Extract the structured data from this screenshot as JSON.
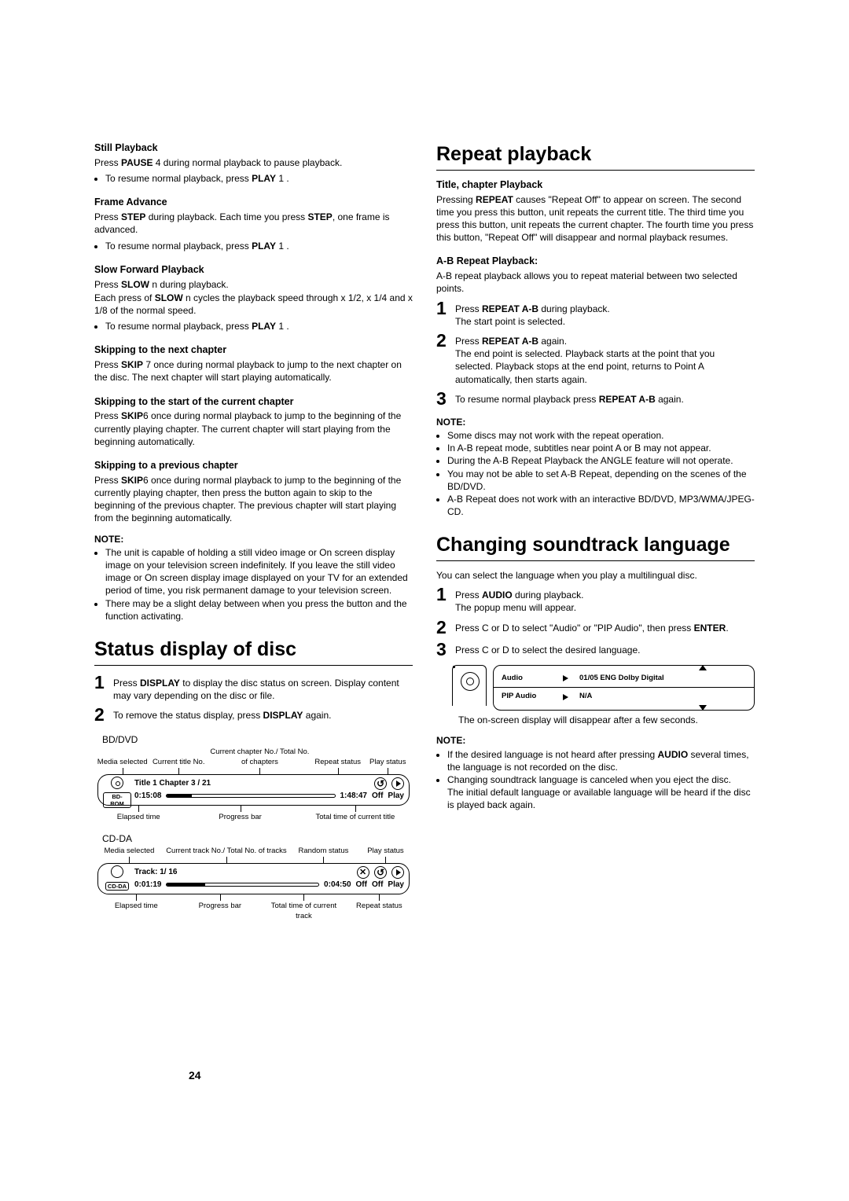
{
  "left": {
    "sec_still": {
      "title": "Still Playback",
      "line1": "Press <b>PAUSE</b> 4 during normal playback to pause playback.",
      "bullet1": "To resume normal playback, press <b>PLAY</b> 1 ."
    },
    "sec_frame": {
      "title": "Frame Advance",
      "line1": "Press <b>STEP</b> during playback. Each time you press <b>STEP</b>, one frame is advanced.",
      "bullet1": "To resume normal playback, press <b>PLAY</b> 1 ."
    },
    "sec_slow": {
      "title": "Slow Forward Playback",
      "line1": "Press <b>SLOW</b> n during playback.",
      "line2": "Each press of <b>SLOW</b> n cycles the playback speed through x 1/2, x 1/4 and x 1/8 of the normal speed.",
      "bullet1": "To resume normal playback, press <b>PLAY</b> 1 ."
    },
    "sec_next": {
      "title": "Skipping to the next chapter",
      "line1": "Press <b>SKIP</b> 7 once during normal playback to jump to the next chapter on the disc. The next chapter will start playing automatically."
    },
    "sec_start": {
      "title": "Skipping to the start of the current chapter",
      "line1": "Press <b>SKIP</b>6 once during normal playback to jump to the beginning of the currently playing chapter. The current chapter will start playing from the beginning automatically."
    },
    "sec_prev": {
      "title": "Skipping to a previous chapter",
      "line1": "Press <b>SKIP</b>6 once during normal playback to jump to the beginning of the currently playing chapter, then press the button again to skip to the beginning of the previous chapter. The previous chapter will start playing from the beginning automatically."
    },
    "note_label": "NOTE:",
    "notes": [
      "The unit is capable of holding a still video image or On screen display image on your television screen indefinitely. If you leave the still video image or On screen display image displayed on your TV for an extended period of time, you risk permanent damage to your television screen.",
      "There may be a slight delay between when you press the button and the function activating."
    ],
    "status_h1": "Status display of disc",
    "status_step1": "Press <b>DISPLAY</b> to display the disc status on screen. Display content may vary depending on the disc or file.",
    "status_step2": "To remove the status display, press <b>DISPLAY</b> again.",
    "diag_bd": {
      "title": "BD/DVD",
      "top_labels": [
        "Media selected",
        "Current title No.",
        "Current chapter No./ Total No. of chapters",
        "Repeat status",
        "Play status"
      ],
      "row1": "Title 1 Chapter 3 / 21",
      "elapsed": "0:15:08",
      "total": "1:48:47",
      "off": "Off",
      "play": "Play",
      "pill": "BD-ROM",
      "bottom_labels": [
        "Elapsed time",
        "Progress bar",
        "Total time of current title"
      ],
      "progress_pct": 15
    },
    "diag_cd": {
      "title": "CD-DA",
      "top_labels": [
        "Media selected",
        "Current track No./ Total No. of tracks",
        "Random status",
        "Play status"
      ],
      "row1": "Track: 1/ 16",
      "elapsed": "0:01:19",
      "total": "0:04:50",
      "off1": "Off",
      "off2": "Off",
      "play": "Play",
      "pill": "CD-DA",
      "bottom_labels": [
        "Elapsed time",
        "Progress bar",
        "Total time of current track",
        "Repeat status"
      ],
      "progress_pct": 25
    }
  },
  "right": {
    "repeat_h1": "Repeat playback",
    "repeat_sub": "Title, chapter Playback",
    "repeat_p": "Pressing <b>REPEAT</b> causes \"Repeat Off\" to appear on screen. The second time you press this button, unit repeats the current title. The third time you press this button, unit repeats the current chapter. The fourth time you press this button, \"Repeat Off\" will disappear and normal playback resumes.",
    "ab_sub": "A-B Repeat Playback:",
    "ab_p": "A-B repeat playback allows you to repeat material between two selected points.",
    "ab_step1_a": "Press <b>REPEAT A-B</b> during playback.",
    "ab_step1_b": "The start point is selected.",
    "ab_step2_a": "Press <b>REPEAT A-B</b> again.",
    "ab_step2_b": "The end point is selected. Playback starts at the point that you selected. Playback stops at the end point, returns to Point A automatically, then starts again.",
    "ab_step3": "To resume normal playback press <b>REPEAT A-B</b> again.",
    "note_label": "NOTE:",
    "ab_notes": [
      "Some discs may not work with the repeat operation.",
      "In A-B repeat mode, subtitles near point A or B may not appear.",
      "During the A-B Repeat Playback the ANGLE feature will not operate.",
      "You may not be able to set A-B Repeat, depending on the scenes of the BD/DVD.",
      "A-B Repeat does not work with an interactive BD/DVD, MP3/WMA/JPEG-CD."
    ],
    "lang_h1": "Changing soundtrack language",
    "lang_intro": "You can select the language when you play a multilingual disc.",
    "lang_step1_a": "Press <b>AUDIO</b> during playback.",
    "lang_step1_b": "The popup menu will appear.",
    "lang_step2": "Press C or D to select \"Audio\" or \"PIP Audio\", then press <b>ENTER</b>.",
    "lang_step3": "Press C or D to select the desired language.",
    "audio_menu": {
      "r1_lbl": "Audio",
      "r1_val": "01/05 ENG Dolby Digital",
      "r2_lbl": "PIP Audio",
      "r2_val": "N/A"
    },
    "lang_after": "The on-screen display will disappear after a few seconds.",
    "lang_notes": [
      "If the desired language is not heard after pressing <b>AUDIO</b> several times, the language is not recorded on the disc.",
      "Changing soundtrack language is canceled when you eject the disc.<br>The initial default language or available language will be heard if the disc is played back again."
    ]
  },
  "page_number": "24"
}
